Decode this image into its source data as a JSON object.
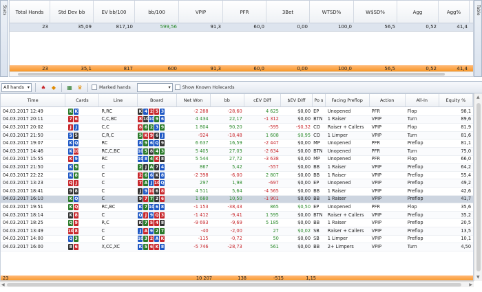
{
  "side_tabs": {
    "left": "Stats",
    "right": "Table"
  },
  "summary": {
    "columns": [
      "Total Hands",
      "Std Dev bb",
      "EV bb/100",
      "bb/100",
      "VPIP",
      "PFR",
      "3Bet",
      "WTSD%",
      "W$SD%",
      "Agg",
      "Agg%"
    ],
    "row": [
      "23",
      "35,09",
      "817,10",
      "599,56",
      "91,3",
      "60,0",
      "0,00",
      "100,0",
      "56,5",
      "0,52",
      "41,4"
    ],
    "total": [
      "23",
      "35,1",
      "817",
      "600",
      "91,3",
      "60,0",
      "0,00",
      "100,0",
      "56,5",
      "0,52",
      "41,4"
    ]
  },
  "toolbar": {
    "filter_value": "All hands",
    "marked_label": "Marked hands",
    "holecards_label": "Show Known Holecards",
    "icons": [
      "hands-icon",
      "chart-icon",
      "bar-chart-icon",
      "trophy-icon"
    ]
  },
  "grid": {
    "columns": [
      "Time",
      "Cards",
      "Line",
      "Board",
      "Net Won",
      "bb",
      "cEV Diff",
      "$EV Diff",
      "Po s",
      "Facing Preflop",
      "Action",
      "All-In",
      "Equity %"
    ],
    "rows": [
      {
        "time": "04.03.2017 12:49",
        "cards": [
          [
            "K",
            "#2a7a2a"
          ],
          [
            "K",
            "#1f58c4"
          ]
        ],
        "line": "R,RC",
        "board": [
          [
            "K",
            "#333"
          ],
          [
            "4",
            "#1f58c4"
          ],
          [
            "2",
            "#c8272c"
          ],
          [
            "5",
            "#c8272c"
          ],
          [
            "3",
            "#1f58c4"
          ]
        ],
        "net": "-2 288",
        "bb": "-28,60",
        "cev": "4 625",
        "ev": "$0,00",
        "pos": "EP",
        "facing": "Unopened",
        "action": "PFR",
        "allin": "Flop",
        "equity": "98,1"
      },
      {
        "time": "04.03.2017 20:11",
        "cards": [
          [
            "7",
            "#c8272c"
          ],
          [
            "6",
            "#c8272c"
          ]
        ],
        "line": "C,C,BC",
        "board": [
          [
            "8",
            "#c8272c"
          ],
          [
            "10",
            "#333"
          ],
          [
            "10",
            "#1f58c4"
          ],
          [
            "9",
            "#2a7a2a"
          ],
          [
            "6",
            "#1f58c4"
          ]
        ],
        "net": "4 434",
        "bb": "22,17",
        "cev": "-1 312",
        "ev": "$0,00",
        "pos": "BTN",
        "facing": "1 Raiser",
        "action": "VPIP",
        "allin": "Turn",
        "equity": "89,6"
      },
      {
        "time": "04.03.2017 20:02",
        "cards": [
          [
            "J",
            "#c8272c"
          ],
          [
            "J",
            "#1f58c4"
          ]
        ],
        "line": "C,C",
        "board": [
          [
            "8",
            "#c8272c"
          ],
          [
            "6",
            "#2a7a2a"
          ],
          [
            "2",
            "#2a7a2a"
          ],
          [
            "3",
            "#1f58c4"
          ],
          [
            "9",
            "#2a7a2a"
          ]
        ],
        "net": "1 804",
        "bb": "90,20",
        "cev": "-595",
        "ev": "-$0,32",
        "pos": "CO",
        "facing": "Raiser + Callers",
        "action": "VPIP",
        "allin": "Flop",
        "equity": "81,9"
      },
      {
        "time": "04.03.2017 21:50",
        "cards": [
          [
            "5",
            "#1f58c4"
          ],
          [
            "5",
            "#333"
          ]
        ],
        "line": "C,R,C",
        "board": [
          [
            "5",
            "#2a7a2a"
          ],
          [
            "K",
            "#c8272c"
          ],
          [
            "9",
            "#c8272c"
          ],
          [
            "6",
            "#333"
          ],
          [
            "J",
            "#1f58c4"
          ]
        ],
        "net": "-924",
        "bb": "-18,48",
        "cev": "1 608",
        "ev": "$0,95",
        "pos": "CO",
        "facing": "1 Limper",
        "action": "VPIP",
        "allin": "Turn",
        "equity": "81,6"
      },
      {
        "time": "04.03.2017 19:07",
        "cards": [
          [
            "K",
            "#1f58c4"
          ],
          [
            "Q",
            "#1f58c4"
          ]
        ],
        "line": "RC",
        "board": [
          [
            "8",
            "#1f58c4"
          ],
          [
            "9",
            "#2a7a2a"
          ],
          [
            "6",
            "#1f58c4"
          ],
          [
            "Q",
            "#1f58c4"
          ],
          [
            "9",
            "#333"
          ]
        ],
        "net": "6 637",
        "bb": "16,59",
        "cev": "-2 447",
        "ev": "$0,00",
        "pos": "MP",
        "facing": "Unopened",
        "action": "PFR",
        "allin": "Preflop",
        "equity": "81,1"
      },
      {
        "time": "04.03.2017 14:46",
        "cards": [
          [
            "K",
            "#1f58c4"
          ],
          [
            "10",
            "#c8272c"
          ]
        ],
        "line": "RC,C,BC",
        "board": [
          [
            "10",
            "#1f58c4"
          ],
          [
            "5",
            "#2a7a2a"
          ],
          [
            "8",
            "#333"
          ],
          [
            "4",
            "#2a7a2a"
          ],
          [
            "3",
            "#2a7a2a"
          ]
        ],
        "net": "5 405",
        "bb": "27,03",
        "cev": "-2 634",
        "ev": "$0,00",
        "pos": "BTN",
        "facing": "Unopened",
        "action": "PFR",
        "allin": "Turn",
        "equity": "75,0"
      },
      {
        "time": "04.03.2017 15:55",
        "cards": [
          [
            "K",
            "#c8272c"
          ],
          [
            "9",
            "#1f58c4"
          ]
        ],
        "line": "RC",
        "board": [
          [
            "10",
            "#1f58c4"
          ],
          [
            "8",
            "#1f58c4"
          ],
          [
            "4",
            "#2a7a2a"
          ],
          [
            "K",
            "#c8272c"
          ],
          [
            "8",
            "#333"
          ]
        ],
        "net": "5 544",
        "bb": "27,72",
        "cev": "-3 638",
        "ev": "$0,00",
        "pos": "MP",
        "facing": "Unopened",
        "action": "PFR",
        "allin": "Flop",
        "equity": "66,0"
      },
      {
        "time": "04.03.2017 21:50",
        "cards": [
          [
            "K",
            "#1f58c4"
          ],
          [
            "9",
            "#2a7a2a"
          ]
        ],
        "line": "C",
        "board": [
          [
            "2",
            "#2a7a2a"
          ],
          [
            "J",
            "#333"
          ],
          [
            "A",
            "#2a7a2a"
          ],
          [
            "7",
            "#333"
          ],
          [
            "4",
            "#1f58c4"
          ]
        ],
        "net": "867",
        "bb": "5,42",
        "cev": "-557",
        "ev": "$0,00",
        "pos": "BB",
        "facing": "1 Raiser",
        "action": "VPIP",
        "allin": "Preflop",
        "equity": "64,2"
      },
      {
        "time": "04.03.2017 22:22",
        "cards": [
          [
            "K",
            "#1f58c4"
          ],
          [
            "8",
            "#2a7a2a"
          ]
        ],
        "line": "C",
        "board": [
          [
            "2",
            "#c8272c"
          ],
          [
            "6",
            "#2a7a2a"
          ],
          [
            "6",
            "#1f58c4"
          ],
          [
            "K",
            "#333"
          ],
          [
            "8",
            "#1f58c4"
          ]
        ],
        "net": "-2 398",
        "bb": "-6,00",
        "cev": "2 807",
        "ev": "$0,00",
        "pos": "BB",
        "facing": "1 Raiser",
        "action": "VPIP",
        "allin": "Preflop",
        "equity": "55,4"
      },
      {
        "time": "04.03.2017 13:23",
        "cards": [
          [
            "Q",
            "#c8272c"
          ],
          [
            "J",
            "#c8272c"
          ]
        ],
        "line": "C",
        "board": [
          [
            "7",
            "#c8272c"
          ],
          [
            "A",
            "#2a7a2a"
          ],
          [
            "J",
            "#1f58c4"
          ],
          [
            "10",
            "#c8272c"
          ],
          [
            "Q",
            "#1f58c4"
          ]
        ],
        "net": "297",
        "bb": "1,98",
        "cev": "-697",
        "ev": "$0,00",
        "pos": "EP",
        "facing": "Unopened",
        "action": "VPIP",
        "allin": "Preflop",
        "equity": "49,2"
      },
      {
        "time": "04.03.2017 18:41",
        "cards": [
          [
            "9",
            "#333"
          ],
          [
            "8",
            "#333"
          ]
        ],
        "line": "C",
        "board": [
          [
            "J",
            "#333"
          ],
          [
            "9",
            "#1f58c4"
          ],
          [
            "10",
            "#c8272c"
          ],
          [
            "6",
            "#333"
          ],
          [
            "8",
            "#c8272c"
          ]
        ],
        "net": "4 511",
        "bb": "5,64",
        "cev": "-4 565",
        "ev": "$0,00",
        "pos": "BB",
        "facing": "1 Raiser",
        "action": "VPIP",
        "allin": "Preflop",
        "equity": "42,6"
      },
      {
        "time": "04.03.2017 16:10",
        "cards": [
          [
            "K",
            "#2a7a2a"
          ],
          [
            "Q",
            "#1f58c4"
          ]
        ],
        "line": "C",
        "board": [
          [
            "9",
            "#333"
          ],
          [
            "7",
            "#c8272c"
          ],
          [
            "7",
            "#2a7a2a"
          ],
          [
            "2",
            "#333"
          ],
          [
            "6",
            "#c8272c"
          ]
        ],
        "net": "1 680",
        "bb": "10,50",
        "cev": "-1 901",
        "ev": "$0,00",
        "pos": "BB",
        "facing": "1 Raiser",
        "action": "VPIP",
        "allin": "Preflop",
        "equity": "41,7",
        "highlight": true
      },
      {
        "time": "04.03.2017 19:51",
        "cards": [
          [
            "K",
            "#2a7a2a"
          ],
          [
            "Q",
            "#c8272c"
          ]
        ],
        "line": "RC,BC",
        "board": [
          [
            "K",
            "#1f58c4"
          ],
          [
            "7",
            "#2a7a2a"
          ],
          [
            "10",
            "#1f58c4"
          ],
          [
            "6",
            "#1f58c4"
          ],
          [
            "8",
            "#1f58c4"
          ]
        ],
        "net": "-1 153",
        "bb": "-38,43",
        "cev": "865",
        "ev": "$0,50",
        "pos": "EP",
        "facing": "Unopened",
        "action": "PFR",
        "allin": "Flop",
        "equity": "35,6"
      },
      {
        "time": "04.03.2017 18:14",
        "cards": [
          [
            "K",
            "#333"
          ],
          [
            "8",
            "#c8272c"
          ]
        ],
        "line": "C",
        "board": [
          [
            "Q",
            "#1f58c4"
          ],
          [
            "J",
            "#c8272c"
          ],
          [
            "9",
            "#1f58c4"
          ],
          [
            "Q",
            "#c8272c"
          ],
          [
            "3",
            "#c8272c"
          ]
        ],
        "net": "-1 412",
        "bb": "-9,41",
        "cev": "1 595",
        "ev": "$0,00",
        "pos": "BTN",
        "facing": "Raiser + Callers",
        "action": "VPIP",
        "allin": "Preflop",
        "equity": "35,2"
      },
      {
        "time": "04.03.2017 18:25",
        "cards": [
          [
            "Q",
            "#2a7a2a"
          ],
          [
            "9",
            "#c8272c"
          ]
        ],
        "line": "R,C",
        "board": [
          [
            "K",
            "#333"
          ],
          [
            "7",
            "#2a7a2a"
          ],
          [
            "5",
            "#c8272c"
          ],
          [
            "4",
            "#c8272c"
          ],
          [
            "8",
            "#333"
          ]
        ],
        "net": "-9 693",
        "bb": "-9,69",
        "cev": "5 185",
        "ev": "$0,00",
        "pos": "BB",
        "facing": "1 Raiser",
        "action": "VPIP",
        "allin": "Preflop",
        "equity": "20,5"
      },
      {
        "time": "04.03.2017 13:49",
        "cards": [
          [
            "10",
            "#c8272c"
          ],
          [
            "8",
            "#c8272c"
          ]
        ],
        "line": "C",
        "board": [
          [
            "J",
            "#1f58c4"
          ],
          [
            "A",
            "#c8272c"
          ],
          [
            "9",
            "#1f58c4"
          ],
          [
            "2",
            "#2a7a2a"
          ],
          [
            "7",
            "#2a7a2a"
          ]
        ],
        "net": "-40",
        "bb": "-2,00",
        "cev": "27",
        "ev": "$0,02",
        "pos": "SB",
        "facing": "Raiser + Callers",
        "action": "VPIP",
        "allin": "Preflop",
        "equity": "13,5"
      },
      {
        "time": "04.03.2017 14:00",
        "cards": [
          [
            "Q",
            "#1f58c4"
          ],
          [
            "3",
            "#2a7a2a"
          ]
        ],
        "line": "C",
        "board": [
          [
            "10",
            "#1f58c4"
          ],
          [
            "3",
            "#2a7a2a"
          ],
          [
            "2",
            "#c8272c"
          ],
          [
            "A",
            "#1f58c4"
          ],
          [
            "K",
            "#c8272c"
          ]
        ],
        "net": "-115",
        "bb": "-0,72",
        "cev": "50",
        "ev": "$0,00",
        "pos": "SB",
        "facing": "1 Limper",
        "action": "VPIP",
        "allin": "Preflop",
        "equity": "10,1"
      },
      {
        "time": "04.03.2017 16:00",
        "cards": [
          [
            "8",
            "#333"
          ],
          [
            "6",
            "#c8272c"
          ]
        ],
        "line": "X,CC,XC",
        "board": [
          [
            "K",
            "#1f58c4"
          ],
          [
            "5",
            "#2a7a2a"
          ],
          [
            "6",
            "#c8272c"
          ],
          [
            "K",
            "#c8272c"
          ],
          [
            "8",
            "#1f58c4"
          ]
        ],
        "net": "-5 746",
        "bb": "-28,73",
        "cev": "561",
        "ev": "$0,00",
        "pos": "BB",
        "facing": "2+ Limpers",
        "action": "VPIP",
        "allin": "Turn",
        "equity": "4,50"
      }
    ],
    "total": {
      "count": "23",
      "net": "10 207",
      "bb": "138",
      "cev": "-515",
      "ev": "1,15"
    }
  }
}
